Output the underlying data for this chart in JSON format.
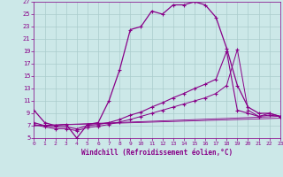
{
  "background_color": "#cce8e8",
  "line_color": "#880088",
  "xlabel": "Windchill (Refroidissement éolien,°C)",
  "xlabel_color": "#880088",
  "tick_color": "#880088",
  "grid_color": "#aacccc",
  "xmin": 0,
  "xmax": 23,
  "ymin": 5,
  "ymax": 27,
  "yticks": [
    5,
    7,
    9,
    11,
    13,
    15,
    17,
    19,
    21,
    23,
    25,
    27
  ],
  "xticks": [
    0,
    1,
    2,
    3,
    4,
    5,
    6,
    7,
    8,
    9,
    10,
    11,
    12,
    13,
    14,
    15,
    16,
    17,
    18,
    19,
    20,
    21,
    22,
    23
  ],
  "series1_x": [
    0,
    1,
    2,
    3,
    4,
    5,
    6,
    7,
    8,
    9,
    10,
    11,
    12,
    13,
    14,
    15,
    16,
    17,
    18,
    19,
    20,
    21,
    22,
    23
  ],
  "series1_y": [
    9.5,
    7.5,
    7.0,
    7.2,
    5.0,
    7.2,
    7.5,
    11.0,
    16.0,
    22.5,
    23.0,
    25.5,
    25.0,
    26.5,
    26.5,
    27.0,
    26.5,
    24.5,
    19.5,
    13.5,
    10.0,
    9.0,
    9.0,
    8.5
  ],
  "series2_x": [
    0,
    1,
    2,
    3,
    4,
    5,
    6,
    7,
    8,
    9,
    10,
    11,
    12,
    13,
    14,
    15,
    16,
    17,
    18,
    19,
    20,
    21,
    22,
    23
  ],
  "series2_y": [
    7.5,
    7.0,
    6.8,
    6.8,
    6.5,
    7.0,
    7.2,
    7.5,
    8.0,
    8.7,
    9.2,
    10.0,
    10.7,
    11.5,
    12.2,
    13.0,
    13.7,
    14.5,
    19.0,
    9.5,
    9.0,
    8.5,
    8.7,
    8.5
  ],
  "series3_x": [
    0,
    1,
    2,
    3,
    4,
    5,
    6,
    7,
    8,
    9,
    10,
    11,
    12,
    13,
    14,
    15,
    16,
    17,
    18,
    19,
    20,
    21,
    22,
    23
  ],
  "series3_y": [
    7.2,
    6.8,
    6.5,
    6.5,
    6.2,
    6.7,
    6.9,
    7.2,
    7.6,
    8.0,
    8.5,
    9.0,
    9.5,
    10.0,
    10.5,
    11.0,
    11.5,
    12.2,
    13.5,
    19.3,
    9.5,
    8.5,
    9.0,
    8.5
  ],
  "series4_x": [
    0,
    23
  ],
  "series4_y": [
    7.0,
    8.5
  ],
  "series5_x": [
    0,
    23
  ],
  "series5_y": [
    7.0,
    8.2
  ]
}
